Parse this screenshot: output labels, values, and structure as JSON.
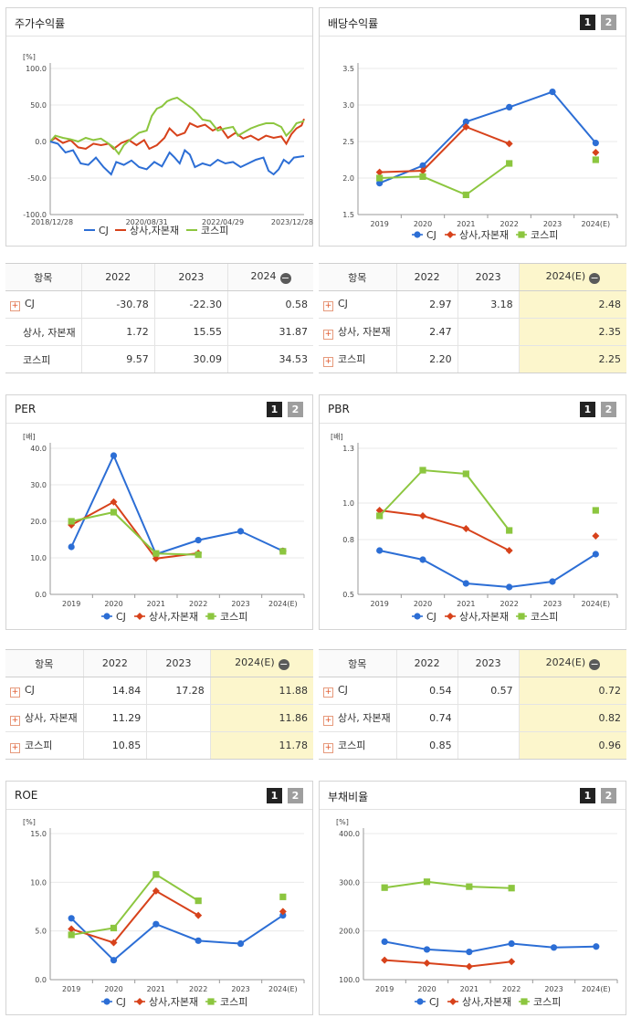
{
  "colors": {
    "cj": "#2c6ed5",
    "sangsa": "#d7421b",
    "kospi": "#8cc63f"
  },
  "legend": [
    "CJ",
    "상사,자본재",
    "코스피"
  ],
  "stock_panel": {
    "title": "주가수익률",
    "chart_data": {
      "type": "line",
      "unit_label": "[%]",
      "y_ticks": [
        "100.0",
        "50.0",
        "0.0",
        "-50.0",
        "-100.0"
      ],
      "ylim": [
        -100,
        100
      ],
      "x_ticks": [
        "2018/12/28",
        "2020/08/31",
        "2022/04/29",
        "2023/12/28"
      ],
      "x_tick_pos": [
        0,
        0.38,
        0.68,
        1.0
      ],
      "series": [
        {
          "name": "CJ",
          "points": [
            [
              0,
              0
            ],
            [
              0.03,
              -3
            ],
            [
              0.06,
              -15
            ],
            [
              0.09,
              -12
            ],
            [
              0.12,
              -30
            ],
            [
              0.15,
              -32
            ],
            [
              0.18,
              -22
            ],
            [
              0.21,
              -35
            ],
            [
              0.24,
              -45
            ],
            [
              0.26,
              -28
            ],
            [
              0.29,
              -32
            ],
            [
              0.32,
              -26
            ],
            [
              0.35,
              -35
            ],
            [
              0.38,
              -38
            ],
            [
              0.41,
              -28
            ],
            [
              0.44,
              -34
            ],
            [
              0.47,
              -15
            ],
            [
              0.49,
              -22
            ],
            [
              0.51,
              -30
            ],
            [
              0.53,
              -12
            ],
            [
              0.55,
              -18
            ],
            [
              0.57,
              -35
            ],
            [
              0.6,
              -30
            ],
            [
              0.63,
              -33
            ],
            [
              0.66,
              -25
            ],
            [
              0.69,
              -30
            ],
            [
              0.72,
              -28
            ],
            [
              0.75,
              -35
            ],
            [
              0.78,
              -30
            ],
            [
              0.81,
              -25
            ],
            [
              0.84,
              -22
            ],
            [
              0.86,
              -40
            ],
            [
              0.88,
              -45
            ],
            [
              0.9,
              -38
            ],
            [
              0.92,
              -25
            ],
            [
              0.94,
              -30
            ],
            [
              0.96,
              -22
            ],
            [
              0.98,
              -21
            ],
            [
              1.0,
              -20
            ]
          ]
        },
        {
          "name": "상사,자본재",
          "points": [
            [
              0,
              0
            ],
            [
              0.02,
              5
            ],
            [
              0.05,
              -2
            ],
            [
              0.08,
              2
            ],
            [
              0.11,
              -8
            ],
            [
              0.14,
              -10
            ],
            [
              0.17,
              -3
            ],
            [
              0.2,
              -5
            ],
            [
              0.23,
              -3
            ],
            [
              0.25,
              -10
            ],
            [
              0.28,
              -2
            ],
            [
              0.31,
              2
            ],
            [
              0.34,
              -5
            ],
            [
              0.37,
              2
            ],
            [
              0.39,
              -10
            ],
            [
              0.42,
              -5
            ],
            [
              0.45,
              5
            ],
            [
              0.47,
              18
            ],
            [
              0.5,
              8
            ],
            [
              0.53,
              12
            ],
            [
              0.55,
              25
            ],
            [
              0.58,
              20
            ],
            [
              0.61,
              23
            ],
            [
              0.64,
              15
            ],
            [
              0.67,
              20
            ],
            [
              0.7,
              5
            ],
            [
              0.73,
              12
            ],
            [
              0.76,
              4
            ],
            [
              0.79,
              8
            ],
            [
              0.82,
              2
            ],
            [
              0.85,
              8
            ],
            [
              0.88,
              5
            ],
            [
              0.91,
              7
            ],
            [
              0.93,
              -3
            ],
            [
              0.95,
              10
            ],
            [
              0.97,
              18
            ],
            [
              0.99,
              22
            ],
            [
              1.0,
              31
            ]
          ]
        },
        {
          "name": "코스피",
          "points": [
            [
              0,
              0
            ],
            [
              0.02,
              8
            ],
            [
              0.05,
              5
            ],
            [
              0.08,
              3
            ],
            [
              0.11,
              0
            ],
            [
              0.14,
              5
            ],
            [
              0.17,
              2
            ],
            [
              0.2,
              4
            ],
            [
              0.23,
              -3
            ],
            [
              0.25,
              -8
            ],
            [
              0.27,
              -17
            ],
            [
              0.29,
              -5
            ],
            [
              0.32,
              4
            ],
            [
              0.35,
              12
            ],
            [
              0.38,
              15
            ],
            [
              0.4,
              35
            ],
            [
              0.42,
              45
            ],
            [
              0.44,
              48
            ],
            [
              0.46,
              55
            ],
            [
              0.48,
              58
            ],
            [
              0.5,
              60
            ],
            [
              0.52,
              55
            ],
            [
              0.54,
              50
            ],
            [
              0.56,
              45
            ],
            [
              0.58,
              38
            ],
            [
              0.6,
              30
            ],
            [
              0.63,
              28
            ],
            [
              0.66,
              15
            ],
            [
              0.69,
              18
            ],
            [
              0.72,
              20
            ],
            [
              0.74,
              8
            ],
            [
              0.76,
              12
            ],
            [
              0.79,
              18
            ],
            [
              0.82,
              22
            ],
            [
              0.85,
              25
            ],
            [
              0.88,
              25
            ],
            [
              0.91,
              20
            ],
            [
              0.93,
              8
            ],
            [
              0.95,
              15
            ],
            [
              0.97,
              25
            ],
            [
              1.0,
              28
            ]
          ]
        }
      ]
    }
  },
  "stock_table": {
    "header": [
      "항목",
      "2022",
      "2023",
      "2024"
    ],
    "rows": [
      {
        "label": "CJ",
        "values": [
          "-30.78",
          "-22.30",
          "0.58"
        ],
        "expand": true
      },
      {
        "label": "상사, 자본재",
        "values": [
          "1.72",
          "15.55",
          "31.87"
        ],
        "expand": false
      },
      {
        "label": "코스피",
        "values": [
          "9.57",
          "30.09",
          "34.53"
        ],
        "expand": false
      }
    ]
  },
  "dividend_panel": {
    "title": "배당수익률",
    "pages": [
      "1",
      "2"
    ],
    "chart_data": {
      "type": "line",
      "unit_label": "",
      "y_ticks": [
        "3.5",
        "3.0",
        "2.5",
        "2.0",
        "1.5"
      ],
      "ylim": [
        1.5,
        3.5
      ],
      "categories": [
        "2019",
        "2020",
        "2021",
        "2022",
        "2023",
        "2024(E)"
      ],
      "series": [
        {
          "name": "CJ",
          "values": [
            1.93,
            2.17,
            2.77,
            2.97,
            3.18,
            2.48
          ]
        },
        {
          "name": "상사,자본재",
          "values": [
            2.08,
            2.1,
            2.7,
            2.47,
            null,
            2.35
          ]
        },
        {
          "name": "코스피",
          "values": [
            2.0,
            2.02,
            1.77,
            2.2,
            null,
            2.25
          ]
        }
      ]
    }
  },
  "dividend_table": {
    "header": [
      "항목",
      "2022",
      "2023",
      "2024(E)"
    ],
    "rows": [
      {
        "label": "CJ",
        "values": [
          "2.97",
          "3.18",
          "2.48"
        ]
      },
      {
        "label": "상사, 자본재",
        "values": [
          "2.47",
          "",
          "2.35"
        ]
      },
      {
        "label": "코스피",
        "values": [
          "2.20",
          "",
          "2.25"
        ]
      }
    ]
  },
  "per_panel": {
    "title": "PER",
    "pages": [
      "1",
      "2"
    ],
    "chart_data": {
      "type": "line",
      "unit_label": "[배]",
      "y_ticks": [
        "40.0",
        "30.0",
        "20.0",
        "10.0",
        "0.0"
      ],
      "ylim": [
        0,
        40
      ],
      "categories": [
        "2019",
        "2020",
        "2021",
        "2022",
        "2023",
        "2024(E)"
      ],
      "series": [
        {
          "name": "CJ",
          "values": [
            13.0,
            38.0,
            11.0,
            14.84,
            17.28,
            11.88
          ]
        },
        {
          "name": "상사,자본재",
          "values": [
            19.0,
            25.3,
            9.8,
            11.29,
            null,
            11.86
          ]
        },
        {
          "name": "코스피",
          "values": [
            20.0,
            22.5,
            11.2,
            10.85,
            null,
            11.78
          ]
        }
      ]
    }
  },
  "per_table": {
    "header": [
      "항목",
      "2022",
      "2023",
      "2024(E)"
    ],
    "rows": [
      {
        "label": "CJ",
        "values": [
          "14.84",
          "17.28",
          "11.88"
        ]
      },
      {
        "label": "상사, 자본재",
        "values": [
          "11.29",
          "",
          "11.86"
        ]
      },
      {
        "label": "코스피",
        "values": [
          "10.85",
          "",
          "11.78"
        ]
      }
    ]
  },
  "pbr_panel": {
    "title": "PBR",
    "pages": [
      "1",
      "2"
    ],
    "chart_data": {
      "type": "line",
      "unit_label": "[배]",
      "y_ticks": [
        "1.3",
        "1.0",
        "0.8",
        "0.5"
      ],
      "y_tick_vals": [
        1.3,
        1.0,
        0.8,
        0.5
      ],
      "ylim": [
        0.5,
        1.3
      ],
      "categories": [
        "2019",
        "2020",
        "2021",
        "2022",
        "2023",
        "2024(E)"
      ],
      "series": [
        {
          "name": "CJ",
          "values": [
            0.74,
            0.69,
            0.56,
            0.54,
            0.57,
            0.72
          ]
        },
        {
          "name": "상사,자본재",
          "values": [
            0.96,
            0.93,
            0.86,
            0.74,
            null,
            0.82
          ]
        },
        {
          "name": "코스피",
          "values": [
            0.93,
            1.18,
            1.16,
            0.85,
            null,
            0.96
          ]
        }
      ]
    }
  },
  "pbr_table": {
    "header": [
      "항목",
      "2022",
      "2023",
      "2024(E)"
    ],
    "rows": [
      {
        "label": "CJ",
        "values": [
          "0.54",
          "0.57",
          "0.72"
        ]
      },
      {
        "label": "상사, 자본재",
        "values": [
          "0.74",
          "",
          "0.82"
        ]
      },
      {
        "label": "코스피",
        "values": [
          "0.85",
          "",
          "0.96"
        ]
      }
    ]
  },
  "roe_panel": {
    "title": "ROE",
    "pages": [
      "1",
      "2"
    ],
    "chart_data": {
      "type": "line",
      "unit_label": "[%]",
      "y_ticks": [
        "15.0",
        "10.0",
        "5.0",
        "0.0"
      ],
      "ylim": [
        0,
        15
      ],
      "categories": [
        "2019",
        "2020",
        "2021",
        "2022",
        "2023",
        "2024(E)"
      ],
      "series": [
        {
          "name": "CJ",
          "values": [
            6.3,
            2.0,
            5.7,
            4.0,
            3.7,
            6.6
          ]
        },
        {
          "name": "상사,자본재",
          "values": [
            5.2,
            3.8,
            9.1,
            6.6,
            null,
            7.0
          ]
        },
        {
          "name": "코스피",
          "values": [
            4.6,
            5.3,
            10.8,
            8.1,
            null,
            8.5
          ]
        }
      ]
    }
  },
  "debt_panel": {
    "title": "부채비율",
    "pages": [
      "1",
      "2"
    ],
    "chart_data": {
      "type": "line",
      "unit_label": "[%]",
      "y_ticks": [
        "400.0",
        "300.0",
        "200.0",
        "100.0"
      ],
      "ylim": [
        100,
        400
      ],
      "categories": [
        "2019",
        "2020",
        "2021",
        "2022",
        "2023",
        "2024(E)"
      ],
      "series": [
        {
          "name": "CJ",
          "values": [
            178,
            162,
            157,
            174,
            166,
            168
          ]
        },
        {
          "name": "상사,자본재",
          "values": [
            140,
            134,
            127,
            137,
            null,
            null
          ]
        },
        {
          "name": "코스피",
          "values": [
            289,
            301,
            291,
            288,
            null,
            null
          ]
        }
      ]
    }
  }
}
